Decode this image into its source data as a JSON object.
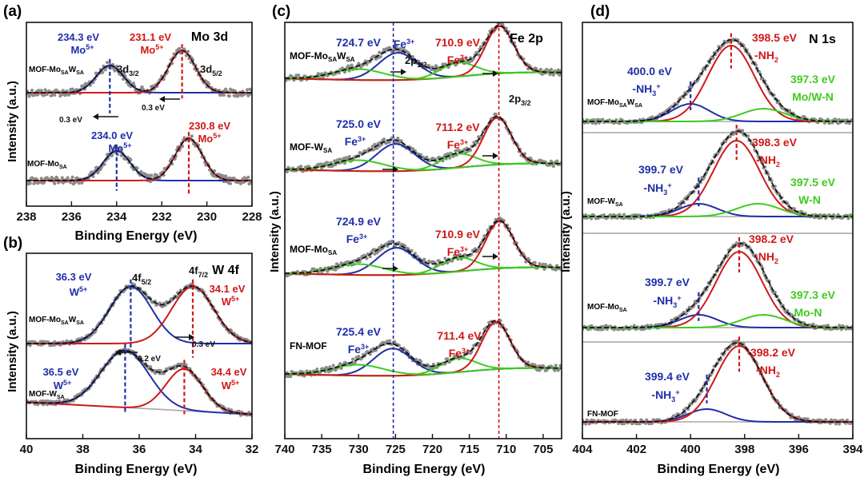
{
  "colors": {
    "blue": "#1f2fa8",
    "red": "#d01818",
    "green": "#3ecb1f",
    "envelope": "#111111",
    "points": "#8c8c8c",
    "background": "#a8a8a8"
  },
  "chart_data": [
    {
      "type": "line",
      "panel": "(a)",
      "title": "Mo 3d",
      "xlabel": "Binding Energy (eV)",
      "ylabel": "Intensity (a.u.)",
      "xlim": [
        238,
        228
      ],
      "xticks": [
        "238",
        "236",
        "234",
        "232",
        "230",
        "228"
      ],
      "xtick_values": [
        238,
        236,
        234,
        232,
        230,
        228
      ],
      "samples": [
        {
          "name": "MOF-Mo",
          "sub": "SA",
          "name2": "W",
          "sub2": "SA",
          "peaks": [
            {
              "series": "Mo5+ 3d3/2",
              "center": 234.3,
              "amplitude": 0.55,
              "width": 0.6,
              "color": "blue"
            },
            {
              "series": "Mo5+ 3d5/2",
              "center": 231.1,
              "amplitude": 0.85,
              "width": 0.6,
              "color": "red"
            }
          ]
        },
        {
          "name": "MOF-Mo",
          "sub": "SA",
          "name2": "",
          "sub2": "",
          "peaks": [
            {
              "series": "Mo5+ 3d3/2",
              "center": 234.0,
              "amplitude": 0.6,
              "width": 0.6,
              "color": "blue"
            },
            {
              "series": "Mo5+ 3d5/2",
              "center": 230.8,
              "amplitude": 0.85,
              "width": 0.6,
              "color": "red"
            }
          ]
        }
      ],
      "labels": {
        "top_blue_energy": "234.3 eV",
        "top_blue_ion": "Mo",
        "top_blue_sup": "5+",
        "top_red_energy": "231.1 eV",
        "top_red_ion": "Mo",
        "top_red_sup": "5+",
        "d32_main": "3d",
        "d32_sub": "3/2",
        "d52_main": "3d",
        "d52_sub": "5/2",
        "shift_right": "0.3 eV",
        "shift_left": "0.3 eV",
        "bot_blue_energy": "234.0 eV",
        "bot_blue_ion": "Mo",
        "bot_blue_sup": "5+",
        "bot_red_energy": "230.8 eV",
        "bot_red_ion": "Mo",
        "bot_red_sup": "5+"
      }
    },
    {
      "type": "line",
      "panel": "(b)",
      "title": "W 4f",
      "xlabel": "Binding Energy (eV)",
      "ylabel": "Intensity (a.u.)",
      "xlim": [
        40,
        32
      ],
      "xticks": [
        "40",
        "38",
        "36",
        "34",
        "32"
      ],
      "xtick_values": [
        40,
        38,
        36,
        34,
        32
      ],
      "samples": [
        {
          "name": "MOF-Mo",
          "sub": "SA",
          "name2": "W",
          "sub2": "SA",
          "peaks": [
            {
              "series": "W5+ 4f5/2",
              "center": 36.3,
              "amplitude": 0.75,
              "width": 0.75,
              "color": "blue"
            },
            {
              "series": "W5+ 4f7/2",
              "center": 34.1,
              "amplitude": 0.75,
              "width": 0.75,
              "color": "red"
            }
          ]
        },
        {
          "name": "MOF-W",
          "sub": "SA",
          "name2": "",
          "sub2": "",
          "peaks": [
            {
              "series": "W5+ 4f5/2",
              "center": 36.5,
              "amplitude": 0.75,
              "width": 0.85,
              "color": "blue"
            },
            {
              "series": "W5+ 4f7/2",
              "center": 34.4,
              "amplitude": 0.55,
              "width": 0.65,
              "color": "red"
            }
          ]
        }
      ],
      "labels": {
        "top_blue_energy": "36.3 eV",
        "top_blue_ion": "W",
        "top_blue_sup": "5+",
        "top_red_energy": "34.1 eV",
        "top_red_ion": "W",
        "top_red_sup": "5+",
        "f52_main": "4f",
        "f52_sub": "5/2",
        "f72_main": "4f",
        "f72_sub": "7/2",
        "shift_right": "0.3 eV",
        "shift_left": "0.2 eV",
        "bot_blue_energy": "36.5 eV",
        "bot_blue_ion": "W",
        "bot_blue_sup": "5+",
        "bot_red_energy": "34.4 eV",
        "bot_red_ion": "W",
        "bot_red_sup": "5+"
      }
    },
    {
      "type": "line",
      "panel": "(c)",
      "title": "Fe 2p",
      "xlabel": "Binding Energy (eV)",
      "ylabel": "Intensity (a.u.)",
      "xlim": [
        740,
        702.5
      ],
      "xticks": [
        "740",
        "735",
        "730",
        "725",
        "720",
        "715",
        "710",
        "705"
      ],
      "xtick_values": [
        740,
        735,
        730,
        725,
        720,
        715,
        710,
        705
      ],
      "reference_lines": [
        725.3,
        711.0
      ],
      "samples": [
        {
          "name": "MOF-Mo",
          "sub": "SA",
          "name2": "W",
          "sub2": "SA",
          "fe_2p12": "724.7 eV",
          "fe_2p32": "710.9 eV",
          "ion": "Fe",
          "sup": "3+",
          "c12": 724.7,
          "c32": 710.9
        },
        {
          "name": "MOF-W",
          "sub": "SA",
          "name2": "",
          "sub2": "",
          "fe_2p12": "725.0 eV",
          "fe_2p32": "711.2 eV",
          "ion": "Fe",
          "sup": "3+",
          "c12": 725.0,
          "c32": 711.2
        },
        {
          "name": "MOF-Mo",
          "sub": "SA",
          "name2": "",
          "sub2": "",
          "fe_2p12": "724.9 eV",
          "fe_2p32": "710.9 eV",
          "ion": "Fe",
          "sup": "3+",
          "c12": 724.9,
          "c32": 710.9
        },
        {
          "name": "FN-MOF",
          "sub": "",
          "name2": "",
          "sub2": "",
          "fe_2p12": "725.4 eV",
          "fe_2p32": "711.4 eV",
          "ion": "Fe",
          "sup": "3+",
          "c12": 725.4,
          "c32": 711.4
        }
      ],
      "labels": {
        "p12_main": "2p",
        "p12_sub": "1/2",
        "p32_main": "2p",
        "p32_sub": "3/2"
      }
    },
    {
      "type": "line",
      "panel": "(d)",
      "title": "N 1s",
      "xlabel": "Binding Energy (eV)",
      "ylabel": "Intensity (a.u.)",
      "xlim": [
        404,
        394
      ],
      "xticks": [
        "404",
        "402",
        "400",
        "398",
        "396",
        "394"
      ],
      "xtick_values": [
        404,
        402,
        400,
        398,
        396,
        394
      ],
      "samples": [
        {
          "name": "MOF-Mo",
          "sub": "SA",
          "name2": "W",
          "sub2": "SA",
          "nh3": "400.0 eV",
          "nh2": "398.5 eV",
          "mn": "397.3 eV",
          "mn_label": "Mo/W-N",
          "c_nh3": 400.0,
          "c_nh2": 398.5,
          "c_mn": 397.3
        },
        {
          "name": "MOF-W",
          "sub": "SA",
          "name2": "",
          "sub2": "",
          "nh3": "399.7 eV",
          "nh2": "398.3 eV",
          "mn": "397.5 eV",
          "mn_label": "W-N",
          "c_nh3": 399.7,
          "c_nh2": 398.3,
          "c_mn": 397.5
        },
        {
          "name": "MOF-Mo",
          "sub": "SA",
          "name2": "",
          "sub2": "",
          "nh3": "399.7 eV",
          "nh2": "398.2 eV",
          "mn": "397.3 eV",
          "mn_label": "Mo-N",
          "c_nh3": 399.7,
          "c_nh2": 398.2,
          "c_mn": 397.3
        },
        {
          "name": "FN-MOF",
          "sub": "",
          "name2": "",
          "sub2": "",
          "nh3": "399.4 eV",
          "nh2": "398.2 eV",
          "mn": "",
          "mn_label": "",
          "c_nh3": 399.4,
          "c_nh2": 398.2,
          "c_mn": null
        }
      ],
      "labels": {
        "nh3_text": "-NH",
        "nh3_sub": "3",
        "nh3_sup": "+",
        "nh2_text": "-NH",
        "nh2_sub": "2"
      }
    }
  ]
}
